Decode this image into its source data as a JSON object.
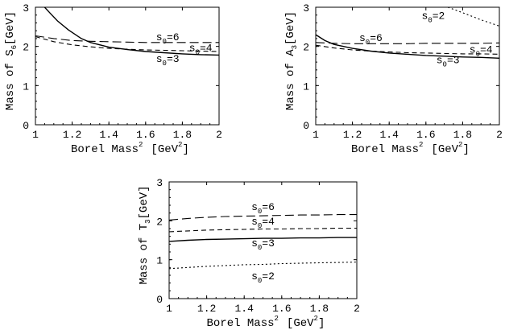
{
  "chart_data": [
    {
      "type": "line",
      "ylabel_prefix": "Mass of ",
      "ylabel_sym": "S",
      "ylabel_sub": "6",
      "ylabel_unit": "[GeV]",
      "xlabel_main": "Borel Mass",
      "xlabel_sup": "2",
      "xlabel_unit_open": "[GeV",
      "xlabel_unit_sup": "2",
      "xlabel_unit_close": "]",
      "xlim": [
        1,
        2
      ],
      "ylim": [
        0,
        3
      ],
      "xticks": [
        "1",
        "1.2",
        "1.4",
        "1.6",
        "1.8",
        "2"
      ],
      "yticks": [
        "0",
        "1",
        "2",
        "3"
      ],
      "series": [
        {
          "name": "s0=6",
          "label_prefix": "s",
          "label_sub": "0",
          "label_suffix": "=6",
          "style": "longdash",
          "x": [
            1.0,
            1.1,
            1.2,
            1.3,
            1.4,
            1.5,
            1.6,
            1.7,
            1.8,
            1.9,
            2.0
          ],
          "y": [
            2.27,
            2.2,
            2.15,
            2.13,
            2.12,
            2.11,
            2.1,
            2.1,
            2.1,
            2.1,
            2.1
          ],
          "label_at": [
            1.72,
            2.16
          ]
        },
        {
          "name": "s0=4",
          "label_prefix": "s",
          "label_sub": "0",
          "label_suffix": "=4",
          "style": "shortdash",
          "x": [
            1.0,
            1.1,
            1.2,
            1.3,
            1.4,
            1.5,
            1.6,
            1.7,
            1.8,
            1.9,
            2.0
          ],
          "y": [
            2.25,
            2.12,
            2.04,
            1.99,
            1.95,
            1.93,
            1.91,
            1.9,
            1.89,
            1.88,
            1.87
          ],
          "label_at": [
            1.9,
            1.88
          ]
        },
        {
          "name": "s0=3",
          "label_prefix": "s",
          "label_sub": "0",
          "label_suffix": "=3",
          "style": "solid",
          "x": [
            1.05,
            1.08,
            1.12,
            1.18,
            1.25,
            1.3,
            1.4,
            1.5,
            1.6,
            1.7,
            1.8,
            1.9,
            2.0
          ],
          "y": [
            3.0,
            2.85,
            2.65,
            2.42,
            2.2,
            2.1,
            1.98,
            1.92,
            1.87,
            1.84,
            1.81,
            1.79,
            1.78
          ],
          "label_at": [
            1.72,
            1.6
          ]
        }
      ]
    },
    {
      "type": "line",
      "ylabel_prefix": "Mass of ",
      "ylabel_sym": "A",
      "ylabel_sub": "3",
      "ylabel_unit": "[GeV]",
      "xlabel_main": "Borel Mass",
      "xlabel_sup": "2",
      "xlabel_unit_open": "[GeV",
      "xlabel_unit_sup": "2",
      "xlabel_unit_close": "]",
      "xlim": [
        1,
        2
      ],
      "ylim": [
        0,
        3
      ],
      "xticks": [
        "1",
        "1.2",
        "1.4",
        "1.6",
        "1.8",
        "2"
      ],
      "yticks": [
        "0",
        "1",
        "2",
        "3"
      ],
      "series": [
        {
          "name": "s0=2",
          "label_prefix": "s",
          "label_sub": "0",
          "label_suffix": "=2",
          "style": "dotted",
          "x": [
            1.72,
            1.76,
            1.8,
            1.85,
            1.9,
            1.95,
            2.0
          ],
          "y": [
            3.0,
            2.93,
            2.86,
            2.77,
            2.68,
            2.6,
            2.52
          ],
          "label_at": [
            1.64,
            2.7
          ]
        },
        {
          "name": "s0=6",
          "label_prefix": "s",
          "label_sub": "0",
          "label_suffix": "=6",
          "style": "longdash",
          "x": [
            1.0,
            1.1,
            1.2,
            1.3,
            1.4,
            1.5,
            1.6,
            1.7,
            1.8,
            1.9,
            2.0
          ],
          "y": [
            2.1,
            2.08,
            2.07,
            2.07,
            2.07,
            2.07,
            2.08,
            2.08,
            2.08,
            2.08,
            2.09
          ],
          "label_at": [
            1.3,
            2.14
          ]
        },
        {
          "name": "s0=4",
          "label_prefix": "s",
          "label_sub": "0",
          "label_suffix": "=4",
          "style": "shortdash",
          "x": [
            1.0,
            1.1,
            1.2,
            1.3,
            1.4,
            1.5,
            1.6,
            1.7,
            1.8,
            1.9,
            2.0
          ],
          "y": [
            2.03,
            1.96,
            1.91,
            1.88,
            1.86,
            1.84,
            1.83,
            1.82,
            1.81,
            1.81,
            1.8
          ],
          "label_at": [
            1.9,
            1.84
          ]
        },
        {
          "name": "s0=3",
          "label_prefix": "s",
          "label_sub": "0",
          "label_suffix": "=3",
          "style": "solid",
          "x": [
            1.0,
            1.05,
            1.1,
            1.2,
            1.3,
            1.4,
            1.5,
            1.6,
            1.7,
            1.8,
            1.9,
            2.0
          ],
          "y": [
            2.3,
            2.15,
            2.05,
            1.95,
            1.88,
            1.83,
            1.8,
            1.77,
            1.75,
            1.73,
            1.72,
            1.7
          ],
          "label_at": [
            1.72,
            1.57
          ]
        }
      ]
    },
    {
      "type": "line",
      "ylabel_prefix": "Mass of ",
      "ylabel_sym": "T",
      "ylabel_sub": "3",
      "ylabel_unit": "[GeV]",
      "xlabel_main": "Borel Mass",
      "xlabel_sup": "2",
      "xlabel_unit_open": "[GeV",
      "xlabel_unit_sup": "2",
      "xlabel_unit_close": "]",
      "xlim": [
        1,
        2
      ],
      "ylim": [
        0,
        3
      ],
      "xticks": [
        "1",
        "1.2",
        "1.4",
        "1.6",
        "1.8",
        "2"
      ],
      "yticks": [
        "0",
        "1",
        "2",
        "3"
      ],
      "series": [
        {
          "name": "s0=6",
          "label_prefix": "s",
          "label_sub": "0",
          "label_suffix": "=6",
          "style": "longdash",
          "x": [
            1.0,
            1.1,
            1.2,
            1.3,
            1.4,
            1.5,
            1.6,
            1.7,
            1.8,
            1.9,
            2.0
          ],
          "y": [
            2.02,
            2.06,
            2.09,
            2.11,
            2.12,
            2.13,
            2.14,
            2.15,
            2.15,
            2.16,
            2.16
          ],
          "label_at": [
            1.5,
            2.28
          ]
        },
        {
          "name": "s0=4",
          "label_prefix": "s",
          "label_sub": "0",
          "label_suffix": "=4",
          "style": "shortdash",
          "x": [
            1.0,
            1.1,
            1.2,
            1.3,
            1.4,
            1.5,
            1.6,
            1.7,
            1.8,
            1.9,
            2.0
          ],
          "y": [
            1.72,
            1.74,
            1.76,
            1.77,
            1.78,
            1.79,
            1.79,
            1.8,
            1.8,
            1.81,
            1.81
          ],
          "label_at": [
            1.5,
            1.9
          ]
        },
        {
          "name": "s0=3",
          "label_prefix": "s",
          "label_sub": "0",
          "label_suffix": "=3",
          "style": "solid",
          "x": [
            1.0,
            1.1,
            1.2,
            1.3,
            1.4,
            1.5,
            1.6,
            1.7,
            1.8,
            1.9,
            2.0
          ],
          "y": [
            1.47,
            1.5,
            1.52,
            1.53,
            1.54,
            1.55,
            1.55,
            1.56,
            1.56,
            1.57,
            1.57
          ],
          "label_at": [
            1.5,
            1.35
          ]
        },
        {
          "name": "s0=2",
          "label_prefix": "s",
          "label_sub": "0",
          "label_suffix": "=2",
          "style": "dotted",
          "x": [
            1.0,
            1.1,
            1.2,
            1.3,
            1.4,
            1.5,
            1.6,
            1.7,
            1.8,
            1.9,
            2.0
          ],
          "y": [
            0.77,
            0.8,
            0.83,
            0.85,
            0.87,
            0.88,
            0.9,
            0.91,
            0.92,
            0.93,
            0.94
          ],
          "label_at": [
            1.5,
            0.5
          ]
        }
      ]
    }
  ]
}
